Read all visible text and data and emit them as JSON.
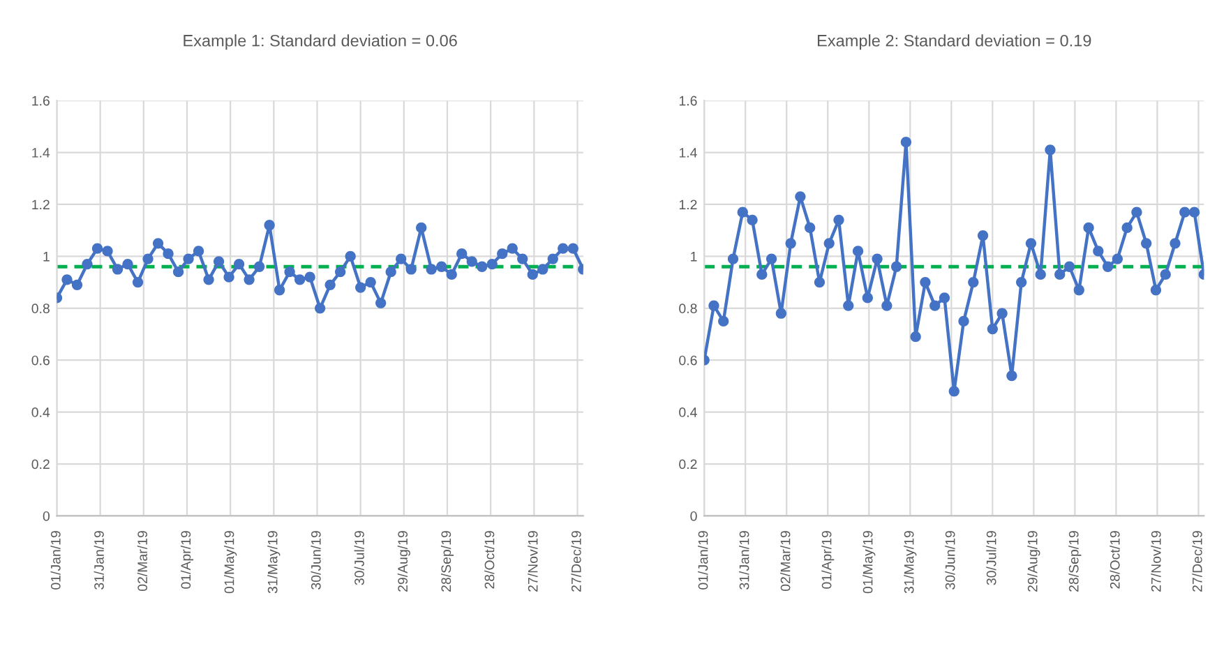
{
  "chart_data": [
    {
      "type": "line",
      "title": "Example 1: Standard deviation = 0.06",
      "x": [
        "2019-01-01",
        "2019-01-08",
        "2019-01-15",
        "2019-01-22",
        "2019-01-29",
        "2019-02-05",
        "2019-02-12",
        "2019-02-19",
        "2019-02-26",
        "2019-03-05",
        "2019-03-12",
        "2019-03-19",
        "2019-03-26",
        "2019-04-02",
        "2019-04-09",
        "2019-04-16",
        "2019-04-23",
        "2019-04-30",
        "2019-05-07",
        "2019-05-14",
        "2019-05-21",
        "2019-05-28",
        "2019-06-04",
        "2019-06-11",
        "2019-06-18",
        "2019-06-25",
        "2019-07-02",
        "2019-07-09",
        "2019-07-16",
        "2019-07-23",
        "2019-07-30",
        "2019-08-06",
        "2019-08-13",
        "2019-08-20",
        "2019-08-27",
        "2019-09-03",
        "2019-09-10",
        "2019-09-17",
        "2019-09-24",
        "2019-10-01",
        "2019-10-08",
        "2019-10-15",
        "2019-10-22",
        "2019-10-29",
        "2019-11-05",
        "2019-11-12",
        "2019-11-19",
        "2019-11-26",
        "2019-12-03",
        "2019-12-10",
        "2019-12-17",
        "2019-12-24",
        "2019-12-31"
      ],
      "series": [
        {
          "color": "#4472c4",
          "values": [
            0.84,
            0.91,
            0.89,
            0.97,
            1.03,
            1.02,
            0.95,
            0.97,
            0.9,
            0.99,
            1.05,
            1.01,
            0.94,
            0.99,
            1.02,
            0.91,
            0.98,
            0.92,
            0.97,
            0.91,
            0.96,
            1.12,
            0.87,
            0.94,
            0.91,
            0.92,
            0.8,
            0.89,
            0.94,
            1.0,
            0.88,
            0.9,
            0.82,
            0.94,
            0.99,
            0.95,
            1.11,
            0.95,
            0.96,
            0.93,
            1.01,
            0.98,
            0.96,
            0.97,
            1.01,
            1.03,
            0.99,
            0.93,
            0.95,
            0.99,
            1.03,
            1.03,
            0.95
          ]
        }
      ],
      "ref_lines": [
        {
          "axis": "y",
          "value": 0.96,
          "color": "#00b050",
          "line_style": "dashed"
        }
      ],
      "xlim": [
        "2019-01-01",
        "2019-12-31"
      ],
      "xticks": [
        {
          "value": "2019-01-01",
          "label": "01/Jan/19"
        },
        {
          "value": "2019-01-31",
          "label": "31/Jan/19"
        },
        {
          "value": "2019-03-02",
          "label": "02/Mar/19"
        },
        {
          "value": "2019-04-01",
          "label": "01/Apr/19"
        },
        {
          "value": "2019-05-01",
          "label": "01/May/19"
        },
        {
          "value": "2019-05-31",
          "label": "31/May/19"
        },
        {
          "value": "2019-06-30",
          "label": "30/Jun/19"
        },
        {
          "value": "2019-07-30",
          "label": "30/Jul/19"
        },
        {
          "value": "2019-08-29",
          "label": "29/Aug/19"
        },
        {
          "value": "2019-09-28",
          "label": "28/Sep/19"
        },
        {
          "value": "2019-10-28",
          "label": "28/Oct/19"
        },
        {
          "value": "2019-11-27",
          "label": "27/Nov/19"
        },
        {
          "value": "2019-12-27",
          "label": "27/Dec/19"
        }
      ],
      "ylim": [
        0,
        1.6
      ],
      "yticks": [
        0,
        0.2,
        0.4,
        0.6,
        0.8,
        1,
        1.2,
        1.4,
        1.6
      ],
      "grid": true,
      "marker": "circle",
      "line_style": "solid",
      "legend": false
    },
    {
      "type": "line",
      "title": "Example 2: Standard deviation = 0.19",
      "x": [
        "2019-01-01",
        "2019-01-08",
        "2019-01-15",
        "2019-01-22",
        "2019-01-29",
        "2019-02-05",
        "2019-02-12",
        "2019-02-19",
        "2019-02-26",
        "2019-03-05",
        "2019-03-12",
        "2019-03-19",
        "2019-03-26",
        "2019-04-02",
        "2019-04-09",
        "2019-04-16",
        "2019-04-23",
        "2019-04-30",
        "2019-05-07",
        "2019-05-14",
        "2019-05-21",
        "2019-05-28",
        "2019-06-04",
        "2019-06-11",
        "2019-06-18",
        "2019-06-25",
        "2019-07-02",
        "2019-07-09",
        "2019-07-16",
        "2019-07-23",
        "2019-07-30",
        "2019-08-06",
        "2019-08-13",
        "2019-08-20",
        "2019-08-27",
        "2019-09-03",
        "2019-09-10",
        "2019-09-17",
        "2019-09-24",
        "2019-10-01",
        "2019-10-08",
        "2019-10-15",
        "2019-10-22",
        "2019-10-29",
        "2019-11-05",
        "2019-11-12",
        "2019-11-19",
        "2019-11-26",
        "2019-12-03",
        "2019-12-10",
        "2019-12-17",
        "2019-12-24",
        "2019-12-31"
      ],
      "series": [
        {
          "color": "#4472c4",
          "values": [
            0.6,
            0.81,
            0.75,
            0.99,
            1.17,
            1.14,
            0.93,
            0.99,
            0.78,
            1.05,
            1.23,
            1.11,
            0.9,
            1.05,
            1.14,
            0.81,
            1.02,
            0.84,
            0.99,
            0.81,
            0.96,
            1.44,
            0.69,
            0.9,
            0.81,
            0.84,
            0.48,
            0.75,
            0.9,
            1.08,
            0.72,
            0.78,
            0.54,
            0.9,
            1.05,
            0.93,
            1.41,
            0.93,
            0.96,
            0.87,
            1.11,
            1.02,
            0.96,
            0.99,
            1.11,
            1.17,
            1.05,
            0.87,
            0.93,
            1.05,
            1.17,
            1.17,
            0.93
          ]
        }
      ],
      "ref_lines": [
        {
          "axis": "y",
          "value": 0.96,
          "color": "#00b050",
          "line_style": "dashed"
        }
      ],
      "xlim": [
        "2019-01-01",
        "2019-12-31"
      ],
      "xticks": [
        {
          "value": "2019-01-01",
          "label": "01/Jan/19"
        },
        {
          "value": "2019-01-31",
          "label": "31/Jan/19"
        },
        {
          "value": "2019-03-02",
          "label": "02/Mar/19"
        },
        {
          "value": "2019-04-01",
          "label": "01/Apr/19"
        },
        {
          "value": "2019-05-01",
          "label": "01/May/19"
        },
        {
          "value": "2019-05-31",
          "label": "31/May/19"
        },
        {
          "value": "2019-06-30",
          "label": "30/Jun/19"
        },
        {
          "value": "2019-07-30",
          "label": "30/Jul/19"
        },
        {
          "value": "2019-08-29",
          "label": "29/Aug/19"
        },
        {
          "value": "2019-09-28",
          "label": "28/Sep/19"
        },
        {
          "value": "2019-10-28",
          "label": "28/Oct/19"
        },
        {
          "value": "2019-11-27",
          "label": "27/Nov/19"
        },
        {
          "value": "2019-12-27",
          "label": "27/Dec/19"
        }
      ],
      "ylim": [
        0,
        1.6
      ],
      "yticks": [
        0,
        0.2,
        0.4,
        0.6,
        0.8,
        1,
        1.2,
        1.4,
        1.6
      ],
      "grid": true,
      "marker": "circle",
      "line_style": "solid",
      "legend": false
    }
  ]
}
